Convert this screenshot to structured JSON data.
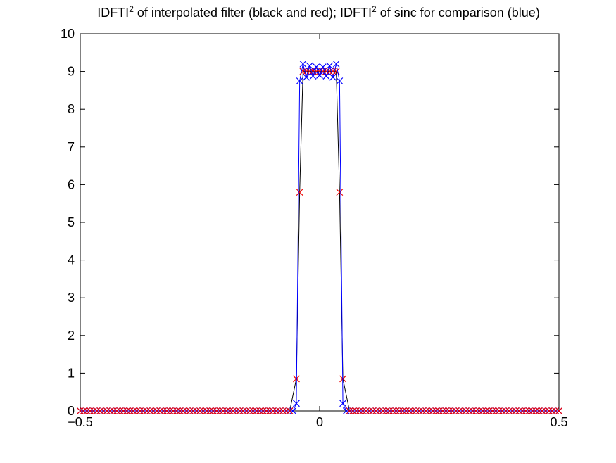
{
  "chart_data": {
    "type": "line",
    "title_parts": {
      "p1": "IDFTI",
      "sup1": "2",
      "p2": " of interpolated filter (black and red); IDFTI",
      "sup2": "2",
      "p3": " of sinc for comparison (blue)"
    },
    "xlim": [
      -0.5,
      0.5
    ],
    "ylim": [
      0,
      10
    ],
    "x_ticks": [
      -0.5,
      0,
      0.5
    ],
    "x_tick_labels": [
      "−0.5",
      "0",
      "0.5"
    ],
    "y_ticks": [
      0,
      1,
      2,
      3,
      4,
      5,
      6,
      7,
      8,
      9,
      10
    ],
    "y_tick_labels": [
      "0",
      "1",
      "2",
      "3",
      "4",
      "5",
      "6",
      "7",
      "8",
      "9",
      "10"
    ],
    "grid": false,
    "colors": {
      "black_line": "#000000",
      "red_marker": "#ee0000",
      "blue_series": "#0000ff"
    },
    "series": [
      {
        "color": "blue",
        "style": "line-x",
        "x": [
          -0.5,
          -0.0625,
          -0.05556,
          -0.04861,
          -0.04167,
          -0.03472,
          -0.02778,
          -0.02083,
          -0.01389,
          -0.00694,
          0,
          0.00694,
          0.01389,
          0.02083,
          0.02778,
          0.03472,
          0.04167,
          0.04861,
          0.05556,
          0.0625,
          0.5
        ],
        "y": [
          0,
          0,
          0,
          0.2,
          8.75,
          9.2,
          8.85,
          9.15,
          8.88,
          9.12,
          8.9,
          9.12,
          8.88,
          9.15,
          8.85,
          9.2,
          8.75,
          0.2,
          0,
          0,
          0
        ]
      },
      {
        "color": "red",
        "style": "x-markers",
        "x": [
          -0.0486,
          -0.0417,
          -0.0347,
          -0.0278,
          -0.0208,
          -0.0139,
          -0.0069,
          0,
          0.0069,
          0.0139,
          0.0208,
          0.0278,
          0.0347,
          0.0417,
          0.0486
        ],
        "y": [
          0.85,
          5.8,
          9.0,
          9.0,
          9.0,
          9.0,
          9.0,
          9.0,
          9.0,
          9.0,
          9.0,
          9.0,
          9.0,
          5.8,
          0.85
        ]
      },
      {
        "color": "black",
        "style": "line",
        "x": [
          -0.5,
          -0.0625,
          -0.0486,
          -0.0417,
          -0.0347,
          0.0347,
          0.0417,
          0.0486,
          0.0625,
          0.5
        ],
        "y": [
          0,
          0,
          0.85,
          5.8,
          9.0,
          9.0,
          5.8,
          0.85,
          0,
          0
        ]
      }
    ]
  }
}
